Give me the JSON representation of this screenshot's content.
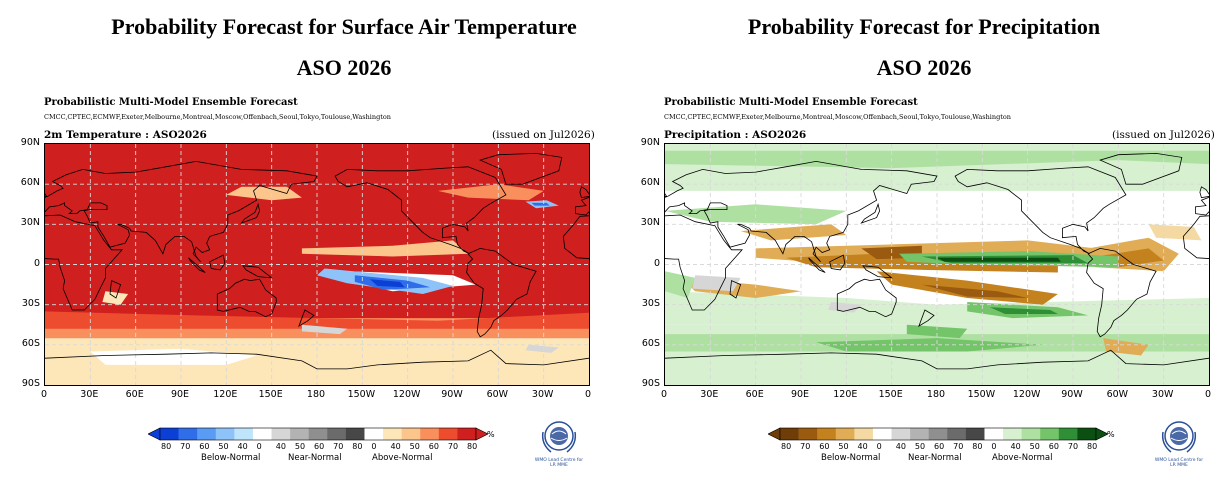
{
  "left": {
    "title": "Probability Forecast for Surface Air Temperature",
    "season": "ASO 2026",
    "model_title": "Probabilistic Multi-Model Ensemble Forecast",
    "centres": "CMCC,CPTEC,ECMWF,Exeter,Melbourne,Montreal,Moscow,Offenbach,Seoul,Tokyo,Toulouse,Washington",
    "variable": "2m Temperature : ASO2026",
    "issued": "(issued on Jul2026)",
    "colorbar": {
      "ticks": [
        "80",
        "70",
        "60",
        "50",
        "40",
        "0",
        "40",
        "50",
        "60",
        "70",
        "80",
        "0",
        "40",
        "50",
        "60",
        "70",
        "80"
      ],
      "unit": "%",
      "categories": [
        "Below-Normal",
        "Near-Normal",
        "Above-Normal"
      ],
      "colors": {
        "below": [
          "#0b3fd6",
          "#2f6ee8",
          "#5a9bf3",
          "#8ec3fa",
          "#bfe5fd"
        ],
        "near": [
          "#ffffff",
          "#d6d6d6",
          "#b3b3b3",
          "#8f8f8f",
          "#6b6b6b",
          "#474747"
        ],
        "above": [
          "#ffffff",
          "#fde7b9",
          "#fcc58c",
          "#f98f5c",
          "#ee4c2e",
          "#d01f1f"
        ]
      }
    },
    "logo_caption": [
      "WMO Lead Centre for",
      "LR MME"
    ]
  },
  "right": {
    "title": "Probability Forecast for Precipitation",
    "season": "ASO 2026",
    "model_title": "Probabilistic Multi-Model Ensemble Forecast",
    "centres": "CMCC,CPTEC,ECMWF,Exeter,Melbourne,Montreal,Moscow,Offenbach,Seoul,Tokyo,Toulouse,Washington",
    "variable": "Precipitation : ASO2026",
    "issued": "(issued on Jul2026)",
    "colorbar": {
      "ticks": [
        "80",
        "70",
        "60",
        "50",
        "40",
        "0",
        "40",
        "50",
        "60",
        "70",
        "80",
        "0",
        "40",
        "50",
        "60",
        "70",
        "80"
      ],
      "unit": "%",
      "categories": [
        "Below-Normal",
        "Near-Normal",
        "Above-Normal"
      ],
      "colors": {
        "below": [
          "#6e3d08",
          "#9a5a10",
          "#c4821f",
          "#e0ac55",
          "#f4d9a3"
        ],
        "near": [
          "#ffffff",
          "#d6d6d6",
          "#b3b3b3",
          "#8f8f8f",
          "#6b6b6b",
          "#474747"
        ],
        "above": [
          "#ffffff",
          "#d7f0d0",
          "#aee0a2",
          "#74c46a",
          "#2f8f36",
          "#0b4f12"
        ]
      }
    },
    "logo_caption": [
      "WMO Lead Centre for",
      "LR MME"
    ]
  },
  "lat_labels": [
    "90N",
    "60N",
    "30N",
    "0",
    "30S",
    "60S",
    "90S"
  ],
  "lon_labels": [
    "0",
    "30E",
    "60E",
    "90E",
    "120E",
    "150E",
    "180",
    "150W",
    "120W",
    "90W",
    "60W",
    "30W",
    "0"
  ]
}
